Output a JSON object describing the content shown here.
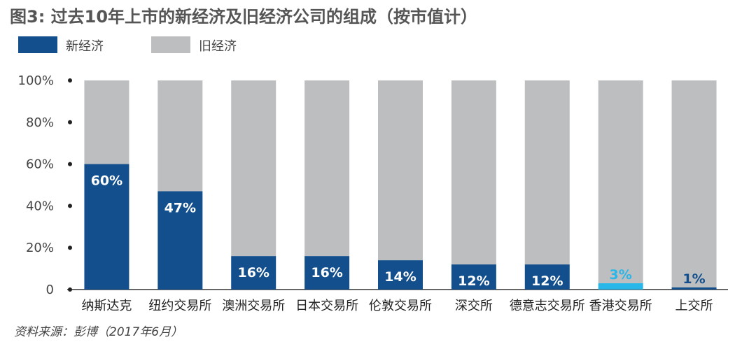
{
  "title": "图3: 过去10年上市的新经济及旧经济公司的组成（按市值计）",
  "source": "资料来源：彭博（2017年6月）",
  "colors": {
    "new_economy": "#124F8C",
    "old_economy": "#BCBEC0",
    "highlight": "#29B6E8",
    "label_on_bar": "#FFFFFF",
    "label_dark": "#124F8C"
  },
  "chart_data": {
    "type": "bar",
    "stacked": true,
    "title": "图3: 过去10年上市的新经济及旧经济公司的组成（按市值计）",
    "xlabel": "",
    "ylabel": "",
    "ylim": [
      0,
      100
    ],
    "yticks": [
      0,
      20,
      40,
      60,
      80,
      100
    ],
    "ytick_labels": [
      "0",
      "20%",
      "40%",
      "60%",
      "80%",
      "100%"
    ],
    "legend_position": "top-left",
    "categories": [
      "纳斯达克",
      "纽约交易所",
      "澳洲交易所",
      "日本交易所",
      "伦敦交易所",
      "深交所",
      "德意志交易所",
      "香港交易所",
      "上交所"
    ],
    "series": [
      {
        "name": "新经济",
        "values": [
          60,
          47,
          16,
          16,
          14,
          12,
          12,
          3,
          1
        ]
      },
      {
        "name": "旧经济",
        "values": [
          40,
          53,
          84,
          84,
          86,
          88,
          88,
          97,
          99
        ]
      }
    ],
    "data_labels": [
      "60%",
      "47%",
      "16%",
      "16%",
      "14%",
      "12%",
      "12%",
      "3%",
      "1%"
    ],
    "highlight_category": "香港交易所"
  }
}
